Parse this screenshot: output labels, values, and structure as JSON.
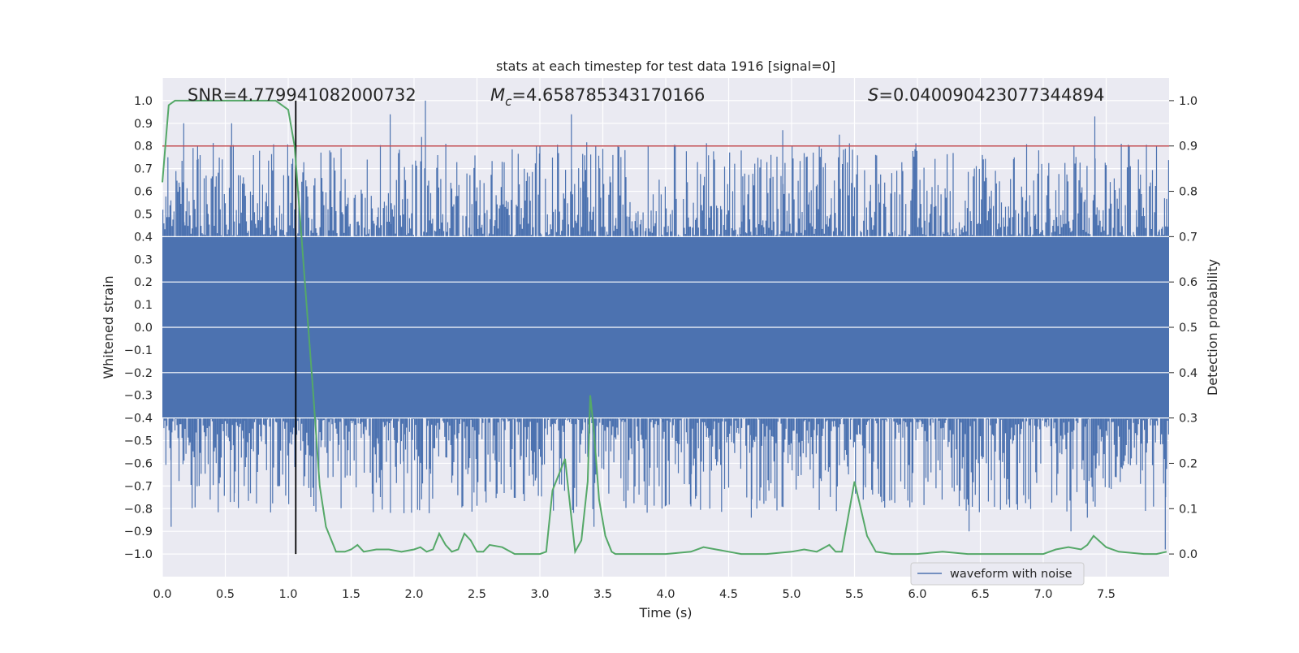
{
  "chart_data": {
    "type": "line",
    "title": "stats at each timestep for test data 1916 [signal=0]",
    "xlabel": "Time (s)",
    "ylabel_left": "Whitened strain",
    "ylabel_right": "Detection probability",
    "xlim": [
      0.0,
      8.0
    ],
    "ylim_left": [
      -1.1,
      1.1
    ],
    "ylim_right": [
      -0.05,
      1.05
    ],
    "x_ticks": [
      0.0,
      0.5,
      1.0,
      1.5,
      2.0,
      2.5,
      3.0,
      3.5,
      4.0,
      4.5,
      5.0,
      5.5,
      6.0,
      6.5,
      7.0,
      7.5
    ],
    "x_tick_labels": [
      "0.0",
      "0.5",
      "1.0",
      "1.5",
      "2.0",
      "2.5",
      "3.0",
      "3.5",
      "4.0",
      "4.5",
      "5.0",
      "5.5",
      "6.0",
      "6.5",
      "7.0",
      "7.5"
    ],
    "y_ticks_left": [
      1.0,
      0.9,
      0.8,
      0.7,
      0.6,
      0.5,
      0.4,
      0.3,
      0.2,
      0.1,
      0.0,
      -0.1,
      -0.2,
      -0.3,
      -0.4,
      -0.5,
      -0.6,
      -0.7,
      -0.8,
      -0.9,
      -1.0
    ],
    "y_tick_labels_left": [
      "1.0",
      "0.9",
      "0.8",
      "0.7",
      "0.6",
      "0.5",
      "0.4",
      "0.3",
      "0.2",
      "0.1",
      "0.0",
      "−0.1",
      "−0.2",
      "−0.3",
      "−0.4",
      "−0.5",
      "−0.6",
      "−0.7",
      "−0.8",
      "−0.9",
      "−1.0"
    ],
    "y_ticks_right": [
      1.0,
      0.9,
      0.8,
      0.7,
      0.6,
      0.5,
      0.4,
      0.3,
      0.2,
      0.1,
      0.0
    ],
    "y_tick_labels_right": [
      "1.0",
      "0.9",
      "0.8",
      "0.7",
      "0.6",
      "0.5",
      "0.4",
      "0.3",
      "0.2",
      "0.1",
      "0.0"
    ],
    "grid": true,
    "legend_position": "lower-right",
    "annotations": {
      "snr": "SNR=4.779941082000732",
      "mc_symbol": "M",
      "mc_sub": "c",
      "mc_value": "=4.658785343170166",
      "s_symbol": "S",
      "s_value": "=0.040090423077344894"
    },
    "threshold": {
      "value": 0.9,
      "axis": "right",
      "color": "#c44e52"
    },
    "marker_time": 1.06,
    "series": [
      {
        "name": "waveform with noise",
        "axis": "left",
        "color": "#4c72b0",
        "description": "dense whitened-strain noise, core band about ±0.4, peaks reaching about ±1.0",
        "band_upper": 0.4,
        "band_lower": -0.4,
        "peaks_upper": [
          [
            0.17,
            0.9
          ],
          [
            0.55,
            0.9
          ],
          [
            1.05,
            0.52
          ],
          [
            1.81,
            0.94
          ],
          [
            2.06,
            0.84
          ],
          [
            2.09,
            1.0
          ],
          [
            3.25,
            0.94
          ],
          [
            4.93,
            0.87
          ],
          [
            5.38,
            0.85
          ],
          [
            5.22,
            0.8
          ],
          [
            7.41,
            0.93
          ],
          [
            6.77,
            0.75
          ],
          [
            3.0,
            0.8
          ],
          [
            2.7,
            0.73
          ],
          [
            4.6,
            0.78
          ],
          [
            7.9,
            0.8
          ],
          [
            0.28,
            0.8
          ],
          [
            1.33,
            0.78
          ]
        ],
        "peaks_lower": [
          [
            0.07,
            -0.88
          ],
          [
            0.38,
            -0.76
          ],
          [
            0.57,
            -0.77
          ],
          [
            1.92,
            -0.82
          ],
          [
            2.12,
            -0.82
          ],
          [
            3.43,
            -0.88
          ],
          [
            3.97,
            -0.8
          ],
          [
            4.2,
            -0.79
          ],
          [
            4.68,
            -0.84
          ],
          [
            5.57,
            -0.76
          ],
          [
            6.41,
            -0.9
          ],
          [
            7.22,
            -0.9
          ],
          [
            7.35,
            -0.84
          ],
          [
            7.97,
            -0.98
          ],
          [
            0.65,
            -0.7
          ],
          [
            2.95,
            -0.7
          ],
          [
            5.9,
            -0.7
          ],
          [
            6.9,
            -0.75
          ],
          [
            4.35,
            -0.8
          ],
          [
            3.7,
            -0.72
          ]
        ]
      },
      {
        "name": "",
        "axis": "right",
        "color": "#55a868",
        "x": [
          0.0,
          0.05,
          0.1,
          0.2,
          0.3,
          0.5,
          0.7,
          0.9,
          1.0,
          1.05,
          1.1,
          1.2,
          1.25,
          1.3,
          1.38,
          1.45,
          1.5,
          1.55,
          1.6,
          1.7,
          1.8,
          1.9,
          2.0,
          2.05,
          2.1,
          2.15,
          2.2,
          2.25,
          2.3,
          2.35,
          2.4,
          2.45,
          2.5,
          2.55,
          2.6,
          2.7,
          2.8,
          2.9,
          3.0,
          3.05,
          3.1,
          3.2,
          3.25,
          3.28,
          3.33,
          3.38,
          3.4,
          3.43,
          3.47,
          3.52,
          3.57,
          3.6,
          3.7,
          4.0,
          4.2,
          4.3,
          4.4,
          4.5,
          4.6,
          4.8,
          5.0,
          5.1,
          5.2,
          5.3,
          5.35,
          5.4,
          5.5,
          5.6,
          5.67,
          5.8,
          6.0,
          6.2,
          6.4,
          6.6,
          6.8,
          7.0,
          7.1,
          7.2,
          7.3,
          7.35,
          7.4,
          7.5,
          7.6,
          7.8,
          7.9,
          7.98
        ],
        "y": [
          0.82,
          0.99,
          1.0,
          1.0,
          1.0,
          1.0,
          1.0,
          1.0,
          0.98,
          0.9,
          0.72,
          0.35,
          0.15,
          0.06,
          0.005,
          0.005,
          0.01,
          0.02,
          0.005,
          0.01,
          0.01,
          0.005,
          0.01,
          0.015,
          0.005,
          0.01,
          0.045,
          0.02,
          0.005,
          0.01,
          0.045,
          0.03,
          0.005,
          0.005,
          0.02,
          0.015,
          0.0,
          0.0,
          0.0,
          0.005,
          0.14,
          0.21,
          0.08,
          0.005,
          0.03,
          0.16,
          0.35,
          0.27,
          0.12,
          0.04,
          0.005,
          0.0,
          0.0,
          0.0,
          0.005,
          0.015,
          0.01,
          0.005,
          0.0,
          0.0,
          0.005,
          0.01,
          0.005,
          0.02,
          0.005,
          0.005,
          0.16,
          0.04,
          0.005,
          0.0,
          0.0,
          0.005,
          0.0,
          0.0,
          0.0,
          0.0,
          0.01,
          0.015,
          0.01,
          0.02,
          0.04,
          0.015,
          0.005,
          0.0,
          0.0,
          0.005
        ]
      }
    ]
  }
}
